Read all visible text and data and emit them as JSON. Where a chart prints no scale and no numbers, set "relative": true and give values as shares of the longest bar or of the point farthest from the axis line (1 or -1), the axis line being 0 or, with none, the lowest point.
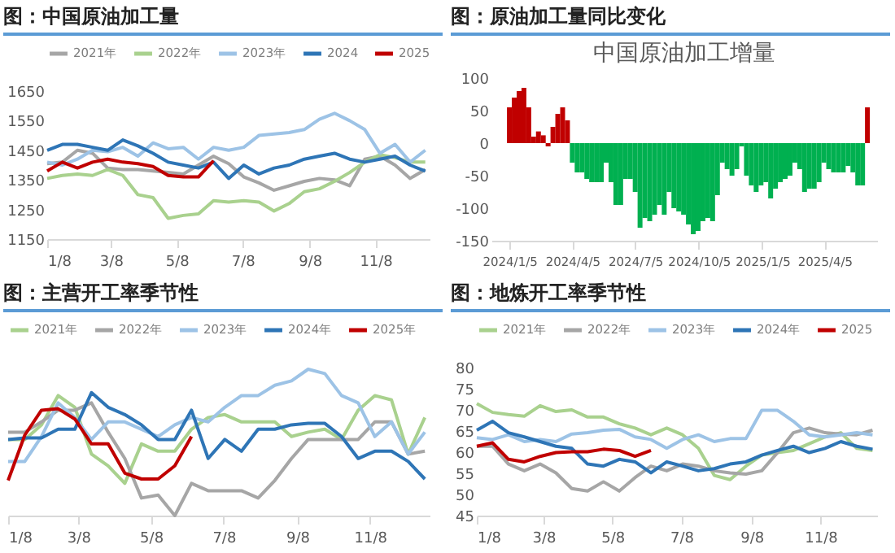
{
  "chart_data": [
    {
      "type": "line",
      "title": "图：中国原油加工量",
      "legend": "top",
      "x": [
        "--01-08",
        "--01-22",
        "--02-05",
        "--02-19",
        "--03-05",
        "--03-19",
        "--04-02",
        "--04-16",
        "--04-30",
        "--05-14",
        "--05-28",
        "--06-11",
        "--06-25",
        "--07-09",
        "--07-23",
        "--08-06",
        "--08-20",
        "--09-03",
        "--09-17",
        "--10-01",
        "--10-15",
        "--10-29",
        "--11-12",
        "--11-26",
        "--12-10",
        "--12-24"
      ],
      "xlim": [
        "--01-08",
        "--12-28"
      ],
      "xticks": [
        {
          "value": "--01-08",
          "label": "1/8"
        },
        {
          "value": "--03-08",
          "label": "3/8"
        },
        {
          "value": "--05-08",
          "label": "5/8"
        },
        {
          "value": "--07-08",
          "label": "7/8"
        },
        {
          "value": "--09-08",
          "label": "9/8"
        },
        {
          "value": "--11-08",
          "label": "11/8"
        }
      ],
      "ylim": [
        1150,
        1650
      ],
      "yticks": [
        1150,
        1250,
        1350,
        1450,
        1550,
        1650
      ],
      "series": [
        {
          "name": "2021年",
          "color": "#a6a6a6",
          "values": [
            1405,
            1410,
            1450,
            1440,
            1390,
            1385,
            1385,
            1380,
            1375,
            1370,
            1400,
            1430,
            1405,
            1360,
            1340,
            1315,
            1330,
            1345,
            1355,
            1350,
            1330,
            1420,
            1430,
            1400,
            1355,
            1385
          ]
        },
        {
          "name": "2022年",
          "color": "#a9d18e",
          "values": [
            1355,
            1365,
            1370,
            1365,
            1385,
            1365,
            1300,
            1290,
            1220,
            1230,
            1235,
            1280,
            1275,
            1280,
            1275,
            1245,
            1270,
            1310,
            1320,
            1345,
            1375,
            1410,
            1435,
            1425,
            1410,
            1410
          ]
        },
        {
          "name": "2023年",
          "color": "#9dc3e6",
          "values": [
            1410,
            1400,
            1420,
            1450,
            1445,
            1460,
            1430,
            1475,
            1455,
            1460,
            1420,
            1460,
            1450,
            1460,
            1500,
            1505,
            1510,
            1520,
            1555,
            1575,
            1550,
            1520,
            1440,
            1470,
            1410,
            1450
          ]
        },
        {
          "name": "2024",
          "color": "#2e75b6",
          "values": [
            1450,
            1470,
            1470,
            1460,
            1450,
            1485,
            1465,
            1440,
            1410,
            1400,
            1390,
            1410,
            1355,
            1400,
            1370,
            1390,
            1400,
            1420,
            1430,
            1440,
            1420,
            1410,
            1420,
            1430,
            1400,
            1380
          ]
        },
        {
          "name": "2025",
          "color": "#c00000",
          "values": [
            1380,
            1410,
            1390,
            1410,
            1420,
            1410,
            1405,
            1395,
            1365,
            1360,
            1360,
            1415,
            null,
            null,
            null,
            null,
            null,
            null,
            null,
            null,
            null,
            null,
            null,
            null,
            null,
            null
          ]
        }
      ]
    },
    {
      "type": "bar",
      "title": "图：原油加工量同比变化",
      "subtitle": "中国原油加工增量",
      "x": [
        "2024-01-05",
        "2024-01-12",
        "2024-01-19",
        "2024-01-26",
        "2024-02-02",
        "2024-02-09",
        "2024-02-16",
        "2024-02-23",
        "2024-03-01",
        "2024-03-08",
        "2024-03-15",
        "2024-03-22",
        "2024-03-29",
        "2024-04-05",
        "2024-04-12",
        "2024-04-19",
        "2024-04-26",
        "2024-05-03",
        "2024-05-10",
        "2024-05-17",
        "2024-05-24",
        "2024-05-31",
        "2024-06-07",
        "2024-06-14",
        "2024-06-21",
        "2024-06-28",
        "2024-07-05",
        "2024-07-12",
        "2024-07-19",
        "2024-07-26",
        "2024-08-02",
        "2024-08-09",
        "2024-08-16",
        "2024-08-23",
        "2024-08-30",
        "2024-09-06",
        "2024-09-13",
        "2024-09-20",
        "2024-09-27",
        "2024-10-04",
        "2024-10-11",
        "2024-10-18",
        "2024-10-25",
        "2024-11-01",
        "2024-11-08",
        "2024-11-15",
        "2024-11-22",
        "2024-11-29",
        "2024-12-06",
        "2024-12-13",
        "2024-12-20",
        "2024-12-27",
        "2025-01-03",
        "2025-01-10",
        "2025-01-17",
        "2025-01-24",
        "2025-01-31",
        "2025-02-07",
        "2025-02-14",
        "2025-02-21",
        "2025-02-28",
        "2025-03-07",
        "2025-03-14",
        "2025-03-21",
        "2025-03-28",
        "2025-04-04",
        "2025-04-11",
        "2025-04-18",
        "2025-04-25",
        "2025-05-02",
        "2025-05-09",
        "2025-05-16",
        "2025-05-23",
        "2025-05-30",
        "2025-06-06"
      ],
      "xlim": [
        "2023-12-10",
        "2025-06-20"
      ],
      "xticks": [
        {
          "value": "2024-01-05",
          "label": "2024/1/5"
        },
        {
          "value": "2024-04-05",
          "label": "2024/4/5"
        },
        {
          "value": "2024-07-05",
          "label": "2024/7/5"
        },
        {
          "value": "2024-10-05",
          "label": "2024/10/5"
        },
        {
          "value": "2025-01-05",
          "label": "2025/1/5"
        },
        {
          "value": "2025-04-05",
          "label": "2025/4/5"
        }
      ],
      "ylim": [
        -150,
        100
      ],
      "yticks": [
        -150,
        -100,
        -50,
        0,
        50,
        100
      ],
      "values": [
        55,
        70,
        80,
        85,
        55,
        10,
        18,
        12,
        -5,
        25,
        45,
        55,
        35,
        -30,
        -45,
        -45,
        -55,
        -60,
        -60,
        -60,
        -30,
        -60,
        -95,
        -95,
        -55,
        -55,
        -75,
        -130,
        -115,
        -120,
        -110,
        -95,
        -110,
        -75,
        -100,
        -105,
        -110,
        -125,
        -140,
        -135,
        -120,
        -115,
        -120,
        -80,
        -30,
        -40,
        -50,
        -40,
        -5,
        -50,
        -65,
        -75,
        -65,
        -60,
        -85,
        -70,
        -60,
        -55,
        -50,
        -30,
        -40,
        -75,
        -70,
        -70,
        -60,
        -30,
        -40,
        -45,
        -45,
        -45,
        -35,
        -45,
        -65,
        -65,
        55
      ],
      "colors": [
        "#c00000",
        "#c00000",
        "#c00000",
        "#c00000",
        "#c00000",
        "#c00000",
        "#c00000",
        "#c00000",
        "#c00000",
        "#c00000",
        "#c00000",
        "#c00000",
        "#c00000",
        "#00b050",
        "#00b050",
        "#00b050",
        "#00b050",
        "#00b050",
        "#00b050",
        "#00b050",
        "#00b050",
        "#00b050",
        "#00b050",
        "#00b050",
        "#00b050",
        "#00b050",
        "#00b050",
        "#00b050",
        "#00b050",
        "#00b050",
        "#00b050",
        "#00b050",
        "#00b050",
        "#00b050",
        "#00b050",
        "#00b050",
        "#00b050",
        "#00b050",
        "#00b050",
        "#00b050",
        "#00b050",
        "#00b050",
        "#00b050",
        "#00b050",
        "#00b050",
        "#00b050",
        "#00b050",
        "#00b050",
        "#00b050",
        "#00b050",
        "#00b050",
        "#00b050",
        "#00b050",
        "#00b050",
        "#00b050",
        "#00b050",
        "#00b050",
        "#00b050",
        "#00b050",
        "#00b050",
        "#00b050",
        "#00b050",
        "#00b050",
        "#00b050",
        "#00b050",
        "#00b050",
        "#00b050",
        "#00b050",
        "#00b050",
        "#00b050",
        "#00b050",
        "#00b050",
        "#00b050",
        "#00b050",
        "#c00000"
      ]
    },
    {
      "type": "line",
      "title": "图：主营开工率季节性",
      "legend": "top",
      "relative": true,
      "tick_labels": "x",
      "x": [
        "--01-08",
        "--01-22",
        "--02-05",
        "--02-19",
        "--03-05",
        "--03-19",
        "--04-02",
        "--04-16",
        "--04-30",
        "--05-14",
        "--05-28",
        "--06-11",
        "--06-25",
        "--07-09",
        "--07-23",
        "--08-06",
        "--08-20",
        "--09-03",
        "--09-17",
        "--10-01",
        "--10-15",
        "--10-29",
        "--11-12",
        "--11-26",
        "--12-10",
        "--12-24"
      ],
      "xlim": [
        "--01-08",
        "--12-28"
      ],
      "xticks": [
        {
          "value": "--01-08",
          "label": "1/8"
        },
        {
          "value": "--03-08",
          "label": "3/8"
        },
        {
          "value": "--05-08",
          "label": "5/8"
        },
        {
          "value": "--07-08",
          "label": "7/8"
        },
        {
          "value": "--09-08",
          "label": "9/8"
        },
        {
          "value": "--11-08",
          "label": "11/8"
        }
      ],
      "series": [
        {
          "name": "2021年",
          "color": "#a9d18e",
          "values": [
            0.52,
            0.52,
            0.62,
            0.82,
            0.74,
            0.42,
            0.34,
            0.22,
            0.49,
            0.44,
            0.44,
            0.59,
            0.67,
            0.69,
            0.64,
            0.64,
            0.64,
            0.54,
            0.57,
            0.59,
            0.52,
            0.72,
            0.82,
            0.79,
            0.42,
            0.67
          ]
        },
        {
          "name": "2022年",
          "color": "#a6a6a6",
          "values": [
            0.57,
            0.57,
            0.64,
            0.72,
            0.72,
            0.77,
            0.57,
            0.39,
            0.12,
            0.14,
            0,
            0.22,
            0.17,
            0.17,
            0.17,
            0.12,
            0.24,
            0.39,
            0.52,
            0.52,
            0.52,
            0.52,
            0.64,
            0.64,
            0.42,
            0.44
          ]
        },
        {
          "name": "2023年",
          "color": "#9dc3e6",
          "values": [
            0.37,
            0.37,
            0.54,
            0.77,
            0.67,
            0.52,
            0.64,
            0.64,
            0.59,
            0.54,
            0.62,
            0.67,
            0.64,
            0.74,
            0.82,
            0.82,
            0.89,
            0.92,
            1,
            0.97,
            0.82,
            0.77,
            0.54,
            0.64,
            0.42,
            0.57
          ]
        },
        {
          "name": "2024年",
          "color": "#2e75b6",
          "values": [
            0.52,
            0.53,
            0.53,
            0.59,
            0.59,
            0.84,
            0.74,
            0.69,
            0.62,
            0.52,
            0.52,
            0.72,
            0.39,
            0.52,
            0.44,
            0.59,
            0.59,
            0.62,
            0.63,
            0.63,
            0.54,
            0.39,
            0.44,
            0.44,
            0.37,
            0.25
          ]
        },
        {
          "name": "2025年",
          "color": "#c00000",
          "values": [
            0.24,
            0.55,
            0.72,
            0.73,
            0.66,
            0.49,
            0.49,
            0.29,
            0.25,
            0.25,
            0.34,
            0.54,
            null,
            null,
            null,
            null,
            null,
            null,
            null,
            null,
            null,
            null,
            null,
            null,
            null,
            null
          ]
        }
      ]
    },
    {
      "type": "line",
      "title": "图：地炼开工率季节性",
      "legend": "top",
      "x": [
        "--01-08",
        "--01-22",
        "--02-05",
        "--02-19",
        "--03-05",
        "--03-19",
        "--04-02",
        "--04-16",
        "--04-30",
        "--05-14",
        "--05-28",
        "--06-11",
        "--06-25",
        "--07-09",
        "--07-23",
        "--08-06",
        "--08-20",
        "--09-03",
        "--09-17",
        "--10-01",
        "--10-15",
        "--10-29",
        "--11-12",
        "--11-26",
        "--12-10",
        "--12-24"
      ],
      "xlim": [
        "--01-08",
        "--12-28"
      ],
      "xticks": [
        {
          "value": "--01-08",
          "label": "1/8"
        },
        {
          "value": "--03-08",
          "label": "3/8"
        },
        {
          "value": "--05-08",
          "label": "5/8"
        },
        {
          "value": "--07-08",
          "label": "7/8"
        },
        {
          "value": "--09-08",
          "label": "9/8"
        },
        {
          "value": "--11-08",
          "label": "11/8"
        }
      ],
      "ylim": [
        45,
        80
      ],
      "yticks": [
        45,
        50,
        55,
        60,
        65,
        70,
        75,
        80
      ],
      "series": [
        {
          "name": "2021年",
          "color": "#a9d18e",
          "values": [
            71.5,
            69.4,
            68.9,
            68.5,
            71,
            69.6,
            70,
            68.3,
            68.3,
            66.7,
            65.7,
            64.1,
            65.7,
            64.1,
            60.9,
            54.5,
            53.5,
            56.7,
            59.3,
            59.9,
            60.4,
            62,
            63.6,
            64.6,
            60.9,
            60.4
          ]
        },
        {
          "name": "2022年",
          "color": "#a6a6a6",
          "values": [
            61.4,
            61.4,
            57.2,
            55.6,
            57.2,
            55.1,
            51.4,
            50.8,
            53,
            50.8,
            54,
            56.7,
            55.6,
            57.2,
            56.7,
            55.6,
            55.1,
            54.8,
            55.6,
            59.9,
            64.6,
            65.7,
            64.6,
            64.3,
            64.1,
            65.2
          ]
        },
        {
          "name": "2023年",
          "color": "#9dc3e6",
          "values": [
            63.4,
            63,
            64.1,
            62.5,
            63,
            62.5,
            64.3,
            64.6,
            65.2,
            65.4,
            63.6,
            63,
            60.9,
            63,
            64.1,
            62.5,
            63.2,
            63.2,
            69.9,
            69.9,
            67.3,
            64.1,
            63.6,
            64.1,
            64.6,
            64.1
          ]
        },
        {
          "name": "2024年",
          "color": "#2e75b6",
          "values": [
            65.2,
            67.3,
            64.6,
            63.6,
            62.5,
            61.4,
            60.9,
            57.2,
            56.7,
            58.3,
            57.7,
            55.1,
            57.7,
            56.7,
            55.6,
            56.1,
            57.2,
            57.7,
            59.3,
            60.4,
            61.4,
            59.9,
            60.9,
            62.5,
            61.4,
            60.7
          ]
        },
        {
          "name": "2025",
          "color": "#c00000",
          "values": [
            61.4,
            62.2,
            58.3,
            57.7,
            59,
            59.9,
            60.1,
            60.1,
            60.7,
            60.4,
            59,
            60.4,
            null,
            null,
            null,
            null,
            null,
            null,
            null,
            null,
            null,
            null,
            null,
            null,
            null,
            null
          ]
        }
      ]
    }
  ]
}
